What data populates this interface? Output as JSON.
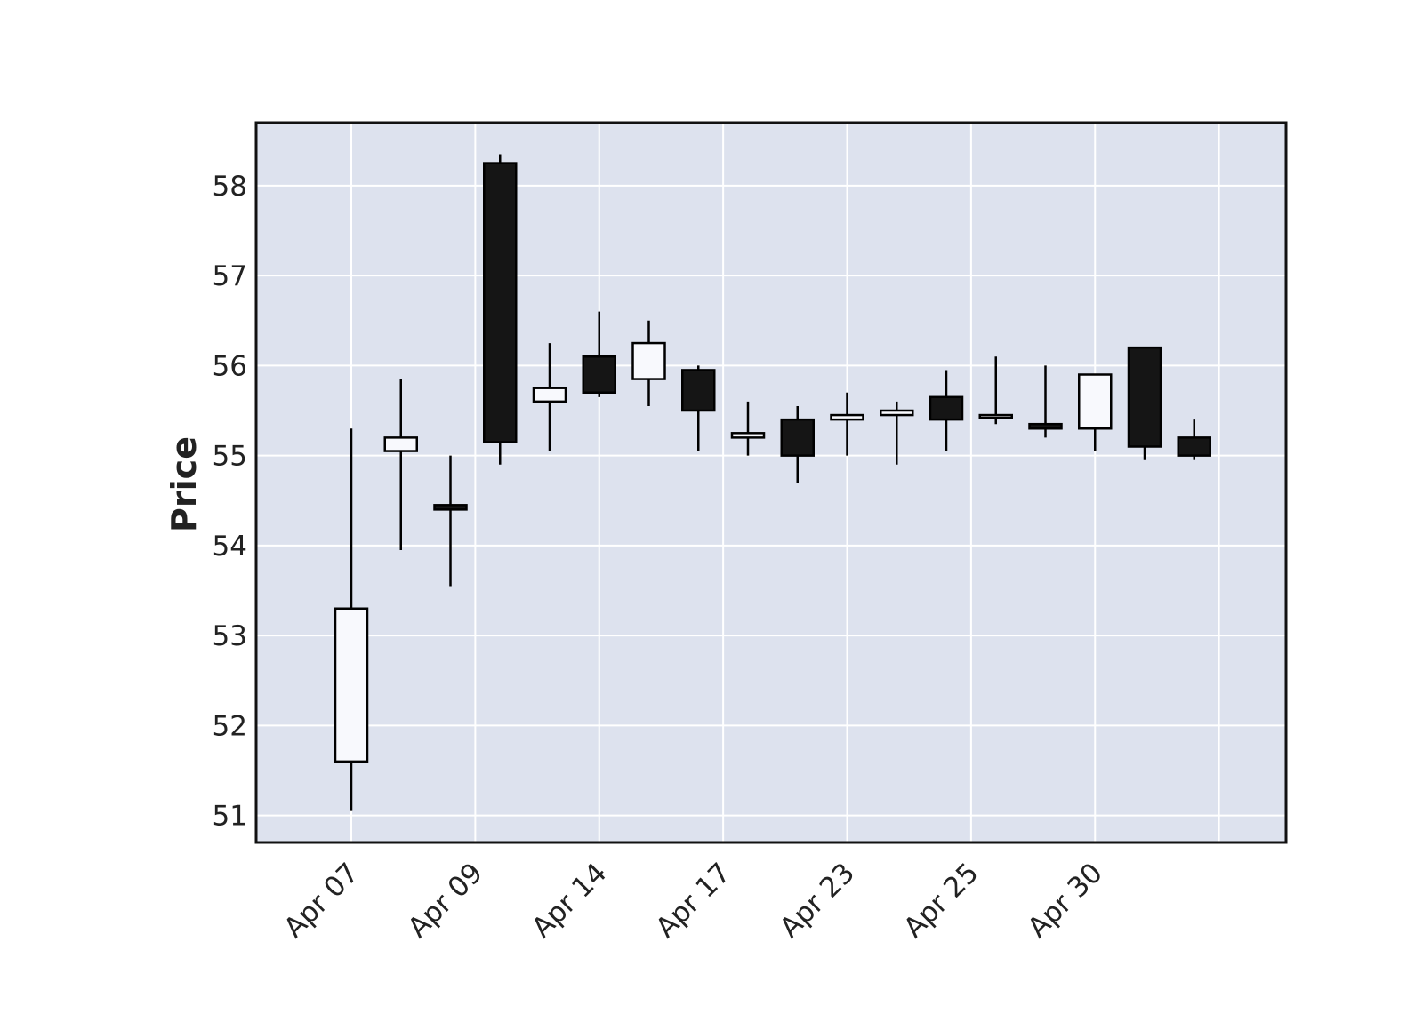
{
  "chart_data": {
    "type": "candlestick",
    "title": "",
    "xlabel": "",
    "ylabel": "Price",
    "ylim": [
      50.7,
      58.7
    ],
    "yticks": [
      51,
      52,
      53,
      54,
      55,
      56,
      57,
      58
    ],
    "grid": true,
    "legend": "none",
    "colors": {
      "plot_background": "#dde2ee",
      "up_body": "#f8f9fd",
      "down_body": "#151515",
      "wick": "#000000",
      "grid": "#ffffff",
      "frame": "#111111"
    },
    "xtick_labels": [
      "Apr 07",
      "Apr 09",
      "Apr 14",
      "Apr 17",
      "Apr 23",
      "Apr 25",
      "Apr 30"
    ],
    "xtick_index": [
      0,
      2.5,
      5,
      7.5,
      10,
      12.5,
      15
    ],
    "candles": [
      {
        "open": 51.6,
        "high": 55.3,
        "low": 51.05,
        "close": 53.3
      },
      {
        "open": 55.05,
        "high": 55.85,
        "low": 53.95,
        "close": 55.2
      },
      {
        "open": 54.45,
        "high": 55.0,
        "low": 53.55,
        "close": 54.4
      },
      {
        "open": 58.25,
        "high": 58.35,
        "low": 54.9,
        "close": 55.15
      },
      {
        "open": 55.6,
        "high": 56.25,
        "low": 55.05,
        "close": 55.75
      },
      {
        "open": 56.1,
        "high": 56.6,
        "low": 55.65,
        "close": 55.7
      },
      {
        "open": 55.85,
        "high": 56.5,
        "low": 55.55,
        "close": 56.25
      },
      {
        "open": 55.95,
        "high": 56.0,
        "low": 55.05,
        "close": 55.5
      },
      {
        "open": 55.2,
        "high": 55.6,
        "low": 55.0,
        "close": 55.25
      },
      {
        "open": 55.4,
        "high": 55.55,
        "low": 54.7,
        "close": 55.0
      },
      {
        "open": 55.4,
        "high": 55.7,
        "low": 55.0,
        "close": 55.45
      },
      {
        "open": 55.45,
        "high": 55.6,
        "low": 54.9,
        "close": 55.5
      },
      {
        "open": 55.65,
        "high": 55.95,
        "low": 55.05,
        "close": 55.4
      },
      {
        "open": 55.45,
        "high": 56.1,
        "low": 55.35,
        "close": 55.45
      },
      {
        "open": 55.35,
        "high": 56.0,
        "low": 55.2,
        "close": 55.3
      },
      {
        "open": 55.3,
        "high": 55.9,
        "low": 55.05,
        "close": 55.9
      },
      {
        "open": 56.2,
        "high": 56.2,
        "low": 54.95,
        "close": 55.1
      },
      {
        "open": 55.2,
        "high": 55.4,
        "low": 54.95,
        "close": 55.0
      }
    ]
  }
}
